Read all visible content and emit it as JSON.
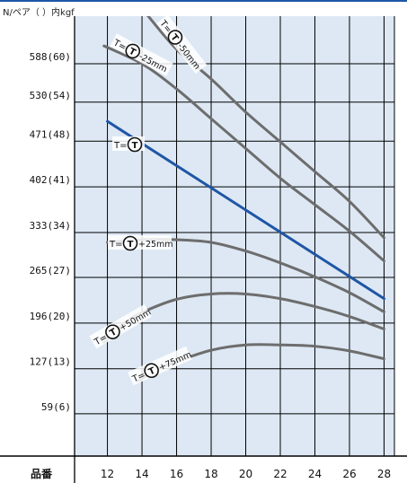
{
  "colors": {
    "background": "#dde8f4",
    "grid": "#000000",
    "frame_accent": "#1d57a6",
    "curve_gray": "#6d6d6d",
    "curve_blue": "#1f56a5"
  },
  "chart_data": {
    "type": "line",
    "unit_label": "N/ペア（ ）内kgf",
    "x_axis_label": "品番",
    "x_ticks": [
      12,
      14,
      16,
      18,
      20,
      22,
      24,
      26,
      28
    ],
    "y_ticks": [
      {
        "value": 59,
        "label": "59(6)"
      },
      {
        "value": 127,
        "label": "127(13)"
      },
      {
        "value": 196,
        "label": "196(20)"
      },
      {
        "value": 265,
        "label": "265(27)"
      },
      {
        "value": 333,
        "label": "333(34)"
      },
      {
        "value": 402,
        "label": "402(41)"
      },
      {
        "value": 471,
        "label": "471(48)"
      },
      {
        "value": 530,
        "label": "530(54)"
      },
      {
        "value": 588,
        "label": "588(60)"
      }
    ],
    "xlim": [
      10.1,
      28.6
    ],
    "ylim": [
      -5,
      660
    ],
    "grid": true,
    "series": [
      {
        "name": "T=Ⓣ-50mm",
        "label_prefix": "T=",
        "label_suffix": "-50mm",
        "color": "gray",
        "x": [
          14.3,
          16,
          18,
          20,
          22,
          24,
          26,
          28
        ],
        "y": [
          662,
          610,
          565,
          515,
          470,
          425,
          380,
          325
        ]
      },
      {
        "name": "T=Ⓣ-25mm",
        "label_prefix": "T=",
        "label_suffix": "-25mm",
        "color": "gray",
        "x": [
          11.8,
          14,
          16,
          18,
          20,
          22,
          24,
          26,
          28
        ],
        "y": [
          615,
          588,
          550,
          505,
          460,
          415,
          375,
          335,
          290
        ]
      },
      {
        "name": "T=Ⓣ",
        "label_prefix": "T=",
        "label_suffix": "",
        "color": "blue",
        "x": [
          12,
          28
        ],
        "y": [
          501,
          233
        ]
      },
      {
        "name": "T=Ⓣ+25mm",
        "label_prefix": "T=",
        "label_suffix": "+25mm",
        "color": "gray",
        "x": [
          12,
          14,
          16,
          18,
          20,
          22,
          24,
          26,
          28
        ],
        "y": [
          318,
          322,
          322,
          318,
          305,
          287,
          266,
          242,
          213
        ]
      },
      {
        "name": "T=Ⓣ+50mm",
        "label_prefix": "T=",
        "label_suffix": "+50mm",
        "color": "gray",
        "x": [
          11.8,
          13,
          14,
          16,
          18,
          20,
          22,
          24,
          26,
          28
        ],
        "y": [
          167,
          196,
          212,
          232,
          240,
          240,
          233,
          221,
          206,
          187
        ]
      },
      {
        "name": "T=Ⓣ+75mm",
        "label_prefix": "T=",
        "label_suffix": "+75mm",
        "color": "gray",
        "x": [
          13.8,
          15,
          16,
          18,
          20,
          22,
          24,
          26,
          28
        ],
        "y": [
          109,
          128,
          138,
          155,
          163,
          163,
          161,
          154,
          142
        ]
      }
    ]
  }
}
